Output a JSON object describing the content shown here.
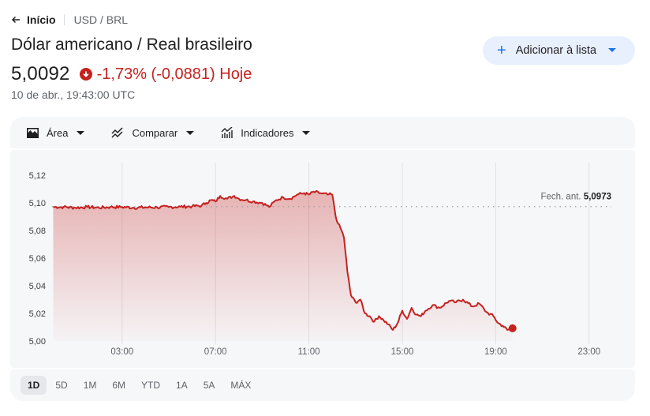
{
  "breadcrumb": {
    "back_label": "Início",
    "current": "USD / BRL"
  },
  "header": {
    "title": "Dólar americano / Real brasileiro",
    "price": "5,0092",
    "change_text": "-1,73% (-0,0881) Hoje",
    "change_direction": "down",
    "timestamp": "10 de abr., 19:43:00 UTC",
    "add_button_label": "Adicionar à lista"
  },
  "toolbar": {
    "items": [
      {
        "label": "Área",
        "icon": "area-chart-icon"
      },
      {
        "label": "Comparar",
        "icon": "compare-icon"
      },
      {
        "label": "Indicadores",
        "icon": "indicators-icon"
      }
    ]
  },
  "ranges": {
    "items": [
      "1D",
      "5D",
      "1M",
      "6M",
      "YTD",
      "1A",
      "5A",
      "MÁX"
    ],
    "active": "1D"
  },
  "colors": {
    "negative": "#c5221f",
    "accent": "#1a73e8",
    "panel_bg": "#f6f7f9",
    "button_bg": "#e8effd"
  },
  "chart_data": {
    "type": "area",
    "title": "USD / BRL 1D",
    "xlabel": "",
    "ylabel": "",
    "x_tick_labels": [
      "03:00",
      "07:00",
      "11:00",
      "15:00",
      "19:00",
      "23:00"
    ],
    "y_tick_labels": [
      "5,12",
      "5,10",
      "5,08",
      "5,06",
      "5,04",
      "5,02",
      "5,00"
    ],
    "ylim": [
      5.0,
      5.12
    ],
    "xlim_hours": [
      0,
      24
    ],
    "grid": "vertical",
    "reference_line": {
      "label": "Fech. ant.",
      "value_label": "5,0973",
      "value": 5.0973
    },
    "series": [
      {
        "name": "USD/BRL",
        "color": "#c5221f",
        "x_hours": [
          0.05,
          0.5,
          1.0,
          1.5,
          2.0,
          2.5,
          3.0,
          3.5,
          4.0,
          4.5,
          5.0,
          5.5,
          6.0,
          6.4,
          6.6,
          6.8,
          7.0,
          7.2,
          7.5,
          7.8,
          8.0,
          8.3,
          8.6,
          9.0,
          9.3,
          9.6,
          9.9,
          10.2,
          10.5,
          10.8,
          11.0,
          11.2,
          11.5,
          11.8,
          12.0,
          12.15,
          12.25,
          12.4,
          12.5,
          12.65,
          12.8,
          13.0,
          13.2,
          13.4,
          13.6,
          13.8,
          14.0,
          14.2,
          14.4,
          14.6,
          14.8,
          15.0,
          15.2,
          15.4,
          15.6,
          15.8,
          16.0,
          16.3,
          16.6,
          17.0,
          17.3,
          17.6,
          18.0,
          18.3,
          18.6,
          18.9,
          19.1,
          19.3,
          19.5,
          19.72
        ],
        "values": [
          5.097,
          5.097,
          5.0965,
          5.097,
          5.0965,
          5.097,
          5.097,
          5.0965,
          5.0967,
          5.0968,
          5.097,
          5.0972,
          5.0975,
          5.098,
          5.1,
          5.102,
          5.101,
          5.105,
          5.103,
          5.105,
          5.103,
          5.102,
          5.101,
          5.1,
          5.097,
          5.102,
          5.104,
          5.103,
          5.106,
          5.107,
          5.106,
          5.108,
          5.107,
          5.106,
          5.106,
          5.09,
          5.085,
          5.08,
          5.075,
          5.05,
          5.033,
          5.028,
          5.03,
          5.02,
          5.018,
          5.014,
          5.018,
          5.015,
          5.012,
          5.008,
          5.013,
          5.022,
          5.016,
          5.024,
          5.019,
          5.018,
          5.022,
          5.026,
          5.024,
          5.029,
          5.028,
          5.03,
          5.025,
          5.027,
          5.021,
          5.018,
          5.013,
          5.011,
          5.008,
          5.0092
        ]
      }
    ]
  }
}
